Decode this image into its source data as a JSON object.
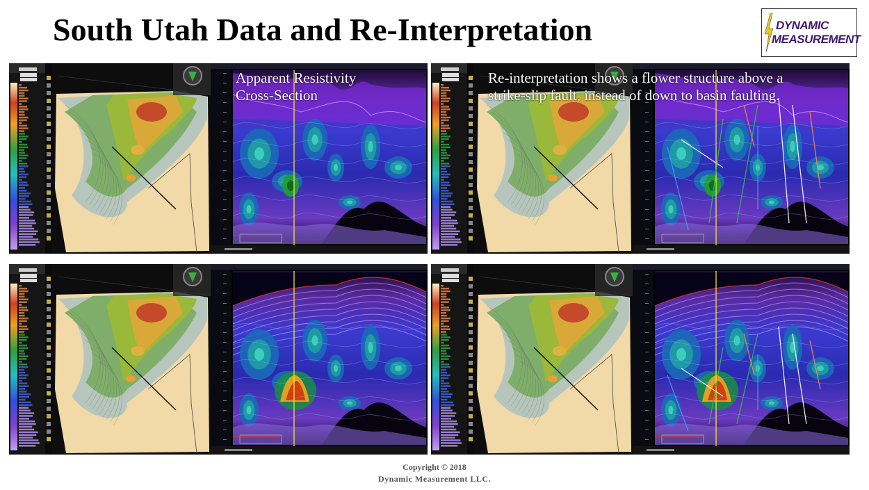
{
  "slide": {
    "title": "South Utah Data and Re-Interpretation"
  },
  "logo": {
    "line1": "DYNAMIC",
    "line2": "MEASUREMENT",
    "text_color": "#3d1a6e",
    "bolt_color": "#f0c419"
  },
  "panels": {
    "top_left": {
      "caption_line1": "Apparent Resistivity",
      "caption_line2": "Cross-Section"
    },
    "top_right": {
      "caption_line1": "Re-interpretation shows a flower structure above a",
      "caption_line2": "strike-slip fault, instead of down to basin faulting."
    }
  },
  "footer": {
    "copyright": "Copyright © 2018",
    "company": "Dynamic  Measurement  LLC."
  }
}
